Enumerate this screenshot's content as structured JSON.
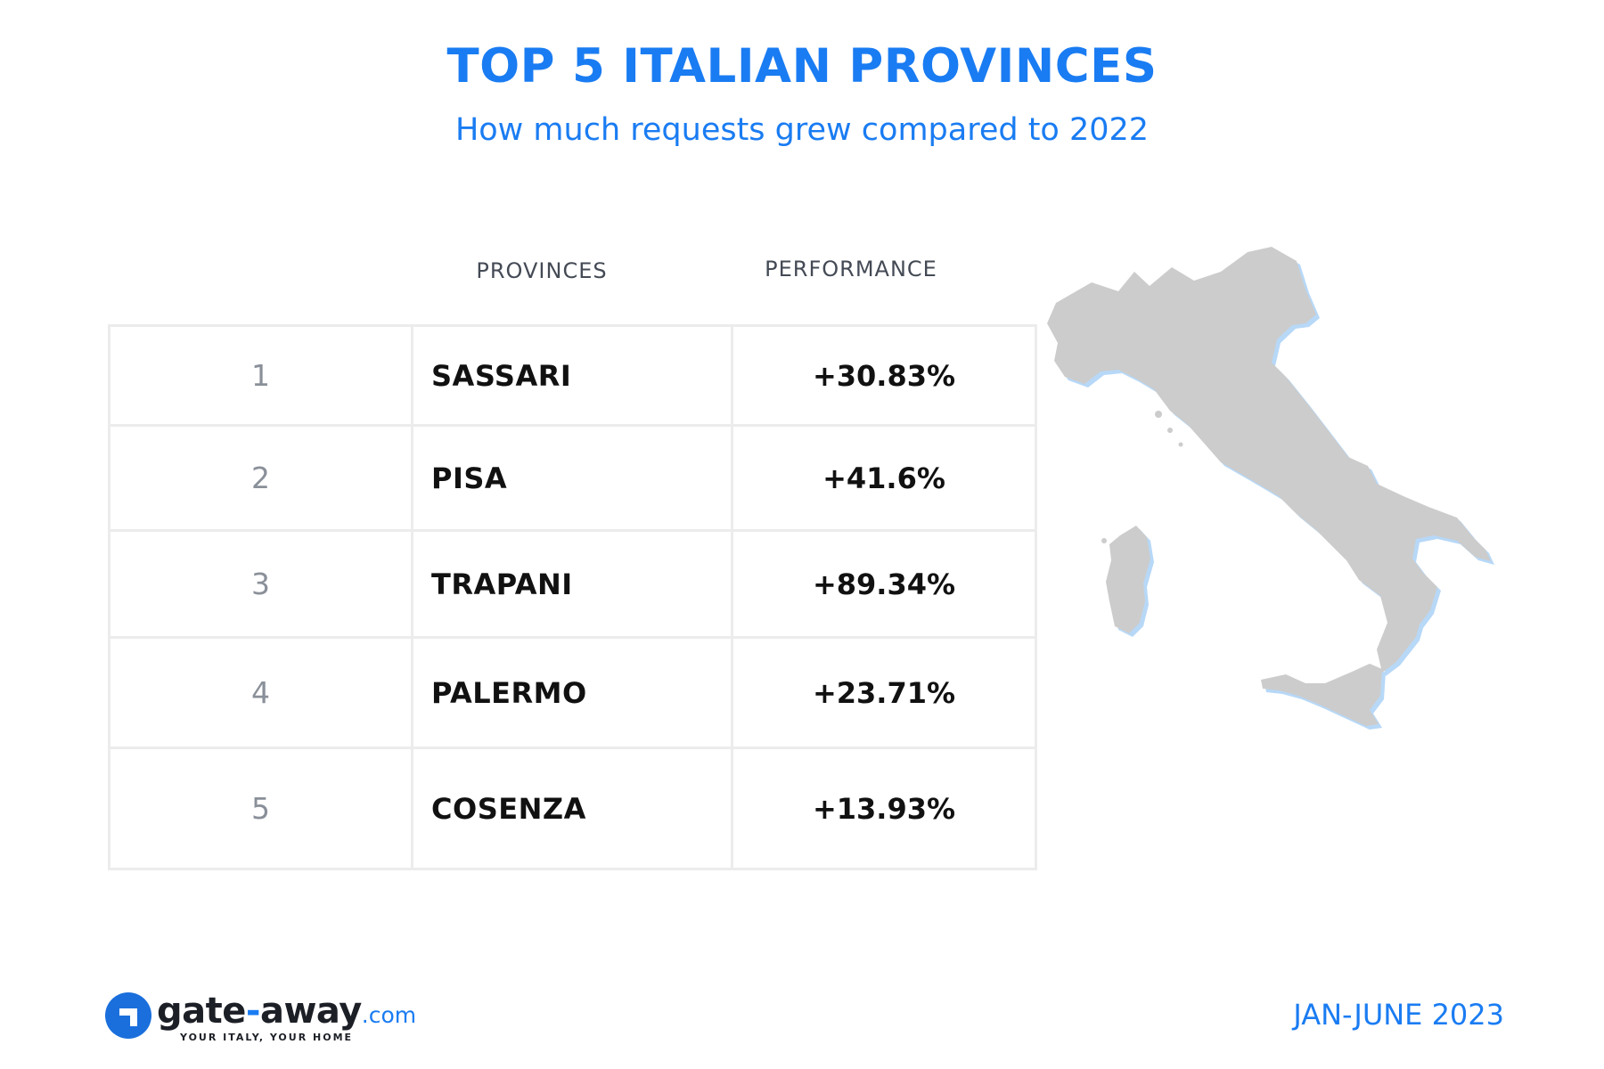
{
  "header": {
    "title": "TOP 5 ITALIAN PROVINCES",
    "subtitle": "How much requests grew compared to 2022"
  },
  "chart_data": {
    "type": "table",
    "title": "TOP 5 ITALIAN PROVINCES",
    "subtitle": "How much requests grew compared to 2022",
    "columns": [
      "PROVINCES",
      "PERFORMANCE"
    ],
    "rows": [
      {
        "rank": "1",
        "province": "SASSARI",
        "performance": "+30.83%"
      },
      {
        "rank": "2",
        "province": "PISA",
        "performance": "+41.6%"
      },
      {
        "rank": "3",
        "province": "TRAPANI",
        "performance": "+89.34%"
      },
      {
        "rank": "4",
        "province": "PALERMO",
        "performance": "+23.71%"
      },
      {
        "rank": "5",
        "province": "COSENZA",
        "performance": "+13.93%"
      }
    ]
  },
  "map": {
    "icon": "italy-map-icon",
    "fill": "#cccccc",
    "shadow": "#b7d8f7"
  },
  "footer": {
    "logo_name": "gate",
    "logo_dash": "-",
    "logo_name2": "away",
    "logo_tld": ".com",
    "tagline": "YOUR ITALY, YOUR HOME",
    "period": "JAN-JUNE 2023"
  },
  "colors": {
    "accent": "#1a7cf2",
    "text": "#111111",
    "rank": "#8a9099",
    "grid": "#ececec"
  }
}
